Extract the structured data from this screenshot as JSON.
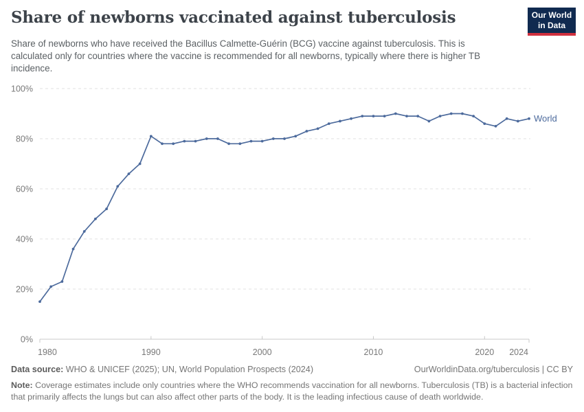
{
  "header": {
    "title": "Share of newborns vaccinated against tuberculosis",
    "subtitle": "Share of newborns who have received the Bacillus Calmette-Guérin (BCG) vaccine against tuberculosis. This is calculated only for countries where the vaccine is recommended for all newborns, typically where there is higher TB incidence.",
    "logo": {
      "line1": "Our World",
      "line2": "in Data"
    }
  },
  "chart_data": {
    "type": "line",
    "title": "Share of newborns vaccinated against tuberculosis",
    "x": [
      1980,
      1981,
      1982,
      1983,
      1984,
      1985,
      1986,
      1987,
      1988,
      1989,
      1990,
      1991,
      1992,
      1993,
      1994,
      1995,
      1996,
      1997,
      1998,
      1999,
      2000,
      2001,
      2002,
      2003,
      2004,
      2005,
      2006,
      2007,
      2008,
      2009,
      2010,
      2011,
      2012,
      2013,
      2014,
      2015,
      2016,
      2017,
      2018,
      2019,
      2020,
      2021,
      2022,
      2023,
      2024
    ],
    "series": [
      {
        "name": "World",
        "values": [
          15,
          21,
          23,
          36,
          43,
          48,
          52,
          61,
          66,
          70,
          81,
          78,
          78,
          79,
          79,
          80,
          80,
          78,
          78,
          79,
          79,
          80,
          80,
          81,
          83,
          84,
          86,
          87,
          88,
          89,
          89,
          89,
          90,
          89,
          89,
          87,
          89,
          90,
          90,
          89,
          86,
          85,
          88,
          87,
          88
        ]
      }
    ],
    "xlabel": "",
    "ylabel": "",
    "xlim": [
      1980,
      2024
    ],
    "ylim": [
      0,
      100
    ],
    "yticks": [
      0,
      20,
      40,
      60,
      80,
      100
    ],
    "ytick_labels": [
      "0%",
      "20%",
      "40%",
      "60%",
      "80%",
      "100%"
    ],
    "xticks": [
      1980,
      1990,
      2000,
      2010,
      2020,
      2024
    ],
    "xtick_labels": [
      "1980",
      "1990",
      "2000",
      "2010",
      "2020",
      "2024"
    ],
    "grid": "horizontal-dashed",
    "legend_position": "end-of-line",
    "end_label": "World"
  },
  "footer": {
    "data_source_label": "Data source:",
    "data_source": " WHO & UNICEF (2025); UN, World Population Prospects (2024)",
    "attribution": "OurWorldinData.org/tuberculosis | CC BY",
    "note_label": "Note:",
    "note": " Coverage estimates include only countries where the WHO recommends vaccination for all newborns. Tuberculosis (TB) is a bacterial infection that primarily affects the lungs but can also affect other parts of the body. It is the leading infectious cause of death worldwide."
  },
  "colors": {
    "line": "#4c6a9c",
    "grid": "#e0e0e0",
    "axis": "#c8c8c8",
    "tick": "#787878",
    "title": "#3d434a",
    "subtitle": "#5b6064",
    "footer": "#757575",
    "logo_bg": "#102a50",
    "logo_bar": "#d0303e"
  }
}
